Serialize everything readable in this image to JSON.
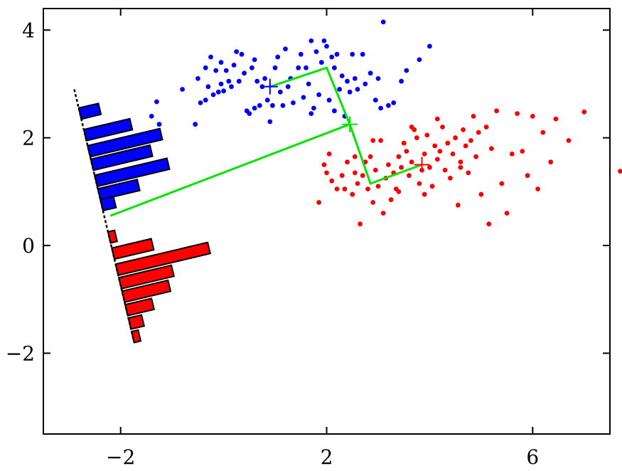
{
  "chart_data": {
    "type": "scatter",
    "title": "",
    "xlabel": "",
    "ylabel": "",
    "xlim": [
      -3.5,
      7.5
    ],
    "ylim": [
      -3.5,
      4.4
    ],
    "xticks": [
      -2,
      2,
      6
    ],
    "yticks": [
      -2,
      0,
      2,
      4
    ],
    "xtick_labels": [
      "−2",
      "2",
      "6"
    ],
    "ytick_labels": [
      "−2",
      "0",
      "2",
      "4"
    ],
    "grid": false,
    "colors": {
      "class1": "#0000ff",
      "class2": "#ff0000",
      "projection": "#00e600",
      "axis": "#000000"
    },
    "series": [
      {
        "color": "#0000ff",
        "points": [
          [
            -1.3,
            2.67
          ],
          [
            -1.4,
            2.4
          ],
          [
            -1.25,
            2.25
          ],
          [
            -0.8,
            2.9
          ],
          [
            -0.55,
            2.25
          ],
          [
            -0.45,
            2.65
          ],
          [
            -0.35,
            2.7
          ],
          [
            -0.3,
            2.95
          ],
          [
            -0.15,
            3.25
          ],
          [
            -0.05,
            3.0
          ],
          [
            -0.5,
            3.1
          ],
          [
            -0.35,
            3.3
          ],
          [
            -0.25,
            3.5
          ],
          [
            -0.2,
            2.8
          ],
          [
            -0.1,
            2.85
          ],
          [
            0.0,
            2.87
          ],
          [
            0.05,
            3.25
          ],
          [
            0.1,
            3.05
          ],
          [
            0.15,
            2.95
          ],
          [
            0.2,
            3.35
          ],
          [
            0.25,
            3.6
          ],
          [
            0.35,
            3.55
          ],
          [
            0.4,
            3.2
          ],
          [
            0.45,
            2.5
          ],
          [
            0.5,
            2.45
          ],
          [
            0.55,
            3.3
          ],
          [
            0.6,
            2.55
          ],
          [
            0.65,
            3.05
          ],
          [
            0.7,
            2.6
          ],
          [
            0.75,
            2.95
          ],
          [
            0.8,
            3.1
          ],
          [
            0.85,
            2.7
          ],
          [
            0.9,
            2.3
          ],
          [
            0.95,
            2.6
          ],
          [
            1.0,
            3.3
          ],
          [
            1.05,
            3.5
          ],
          [
            1.1,
            2.85
          ],
          [
            1.2,
            3.65
          ],
          [
            1.25,
            2.95
          ],
          [
            1.3,
            3.1
          ],
          [
            1.35,
            2.65
          ],
          [
            1.45,
            3.3
          ],
          [
            1.5,
            3.55
          ],
          [
            1.55,
            2.75
          ],
          [
            1.6,
            3.3
          ],
          [
            1.65,
            3.0
          ],
          [
            1.7,
            3.8
          ],
          [
            1.75,
            2.55
          ],
          [
            1.8,
            3.6
          ],
          [
            1.85,
            2.8
          ],
          [
            1.9,
            3.4
          ],
          [
            1.95,
            3.8
          ],
          [
            2.0,
            3.7
          ],
          [
            2.05,
            2.7
          ],
          [
            2.1,
            3.5
          ],
          [
            2.15,
            3.3
          ],
          [
            2.2,
            3.55
          ],
          [
            2.25,
            2.9
          ],
          [
            2.3,
            3.15
          ],
          [
            2.35,
            2.4
          ],
          [
            2.4,
            3.05
          ],
          [
            2.45,
            2.85
          ],
          [
            2.5,
            3.55
          ],
          [
            2.55,
            3.1
          ],
          [
            2.6,
            2.9
          ],
          [
            2.7,
            3.55
          ],
          [
            2.75,
            3.0
          ],
          [
            2.85,
            3.2
          ],
          [
            2.95,
            2.7
          ],
          [
            3.0,
            3.1
          ],
          [
            3.05,
            2.55
          ],
          [
            3.1,
            4.15
          ],
          [
            3.2,
            2.6
          ],
          [
            3.3,
            2.65
          ],
          [
            3.45,
            3.05
          ],
          [
            3.55,
            3.25
          ],
          [
            3.8,
            3.45
          ],
          [
            4.0,
            3.7
          ],
          [
            0.6,
            3.45
          ],
          [
            0.3,
            3.05
          ],
          [
            -0.05,
            3.4
          ],
          [
            1.15,
            2.6
          ],
          [
            2.15,
            2.5
          ],
          [
            1.7,
            2.45
          ]
        ]
      },
      {
        "color": "#ff0000",
        "points": [
          [
            1.85,
            0.8
          ],
          [
            1.95,
            1.5
          ],
          [
            2.0,
            1.35
          ],
          [
            2.05,
            1.7
          ],
          [
            2.1,
            1.2
          ],
          [
            2.2,
            1.05
          ],
          [
            2.3,
            1.3
          ],
          [
            2.35,
            1.05
          ],
          [
            2.4,
            1.55
          ],
          [
            2.5,
            0.95
          ],
          [
            2.55,
            1.35
          ],
          [
            2.6,
            1.15
          ],
          [
            2.65,
            0.4
          ],
          [
            2.7,
            1.3
          ],
          [
            2.75,
            1.55
          ],
          [
            2.8,
            1.05
          ],
          [
            2.85,
            1.65
          ],
          [
            2.9,
            0.8
          ],
          [
            2.95,
            1.4
          ],
          [
            3.0,
            1.1
          ],
          [
            3.05,
            1.95
          ],
          [
            3.1,
            0.6
          ],
          [
            3.15,
            1.25
          ],
          [
            3.2,
            1.5
          ],
          [
            3.25,
            0.85
          ],
          [
            3.3,
            1.35
          ],
          [
            3.35,
            1.05
          ],
          [
            3.4,
            1.65
          ],
          [
            3.45,
            1.45
          ],
          [
            3.5,
            1.9
          ],
          [
            3.55,
            1.75
          ],
          [
            3.6,
            1.3
          ],
          [
            3.65,
            1.55
          ],
          [
            3.7,
            2.15
          ],
          [
            3.75,
            2.0
          ],
          [
            3.8,
            1.15
          ],
          [
            3.85,
            1.4
          ],
          [
            3.9,
            1.7
          ],
          [
            3.95,
            2.05
          ],
          [
            4.0,
            1.45
          ],
          [
            4.05,
            1.1
          ],
          [
            4.1,
            1.85
          ],
          [
            4.15,
            1.6
          ],
          [
            4.2,
            1.75
          ],
          [
            4.25,
            2.2
          ],
          [
            4.3,
            1.4
          ],
          [
            4.35,
            1.9
          ],
          [
            4.4,
            1.25
          ],
          [
            4.45,
            1.7
          ],
          [
            4.5,
            2.0
          ],
          [
            4.55,
            0.75
          ],
          [
            4.6,
            1.55
          ],
          [
            4.65,
            2.15
          ],
          [
            4.7,
            1.85
          ],
          [
            4.75,
            1.35
          ],
          [
            4.8,
            1.95
          ],
          [
            4.85,
            2.4
          ],
          [
            4.9,
            1.65
          ],
          [
            4.95,
            2.1
          ],
          [
            5.0,
            0.95
          ],
          [
            5.1,
            2.2
          ],
          [
            5.15,
            0.4
          ],
          [
            5.2,
            1.8
          ],
          [
            5.3,
            2.5
          ],
          [
            5.4,
            1.15
          ],
          [
            5.5,
            0.6
          ],
          [
            5.6,
            1.7
          ],
          [
            5.7,
            2.45
          ],
          [
            5.8,
            1.75
          ],
          [
            5.9,
            1.3
          ],
          [
            6.0,
            2.4
          ],
          [
            6.1,
            1.05
          ],
          [
            6.2,
            2.1
          ],
          [
            6.35,
            1.55
          ],
          [
            6.45,
            2.35
          ],
          [
            6.7,
            1.95
          ],
          [
            7.0,
            2.48
          ],
          [
            7.7,
            1.38
          ],
          [
            3.4,
            1.0
          ],
          [
            3.65,
            2.2
          ],
          [
            2.55,
            1.65
          ],
          [
            3.9,
            0.95
          ],
          [
            4.15,
            2.35
          ],
          [
            2.9,
            1.95
          ],
          [
            4.6,
            1.45
          ]
        ]
      }
    ],
    "class_means": [
      {
        "color": "#0000ff",
        "x": 0.9,
        "y": 2.95
      },
      {
        "color": "#ff0000",
        "x": 3.85,
        "y": 1.5
      }
    ],
    "projection_point": {
      "x": 2.45,
      "y": 2.25
    },
    "projection_lines": [
      {
        "color": "#00e600",
        "points": [
          [
            0.9,
            2.95
          ],
          [
            2.0,
            3.3
          ],
          [
            2.45,
            2.25
          ],
          [
            2.85,
            1.15
          ],
          [
            3.85,
            1.5
          ]
        ]
      },
      {
        "color": "#00e600",
        "points": [
          [
            -2.2,
            0.55
          ],
          [
            2.45,
            2.25
          ]
        ]
      }
    ],
    "projection_axis": {
      "color": "#000000",
      "from": [
        -2.9,
        2.9
      ],
      "to": [
        -1.75,
        -1.75
      ]
    },
    "histograms": [
      {
        "color": "#0000ff",
        "centers": [
          2.45,
          2.05,
          1.75,
          1.5,
          1.2,
          0.95,
          0.75
        ],
        "counts": [
          3,
          7,
          11,
          9,
          11,
          6,
          2
        ]
      },
      {
        "color": "#ff0000",
        "centers": [
          0.15,
          -0.15,
          -0.45,
          -0.7,
          -0.95,
          -1.2,
          -1.45,
          -1.7
        ],
        "counts": [
          1,
          6,
          14,
          8,
          7,
          4,
          2,
          1
        ]
      }
    ]
  }
}
